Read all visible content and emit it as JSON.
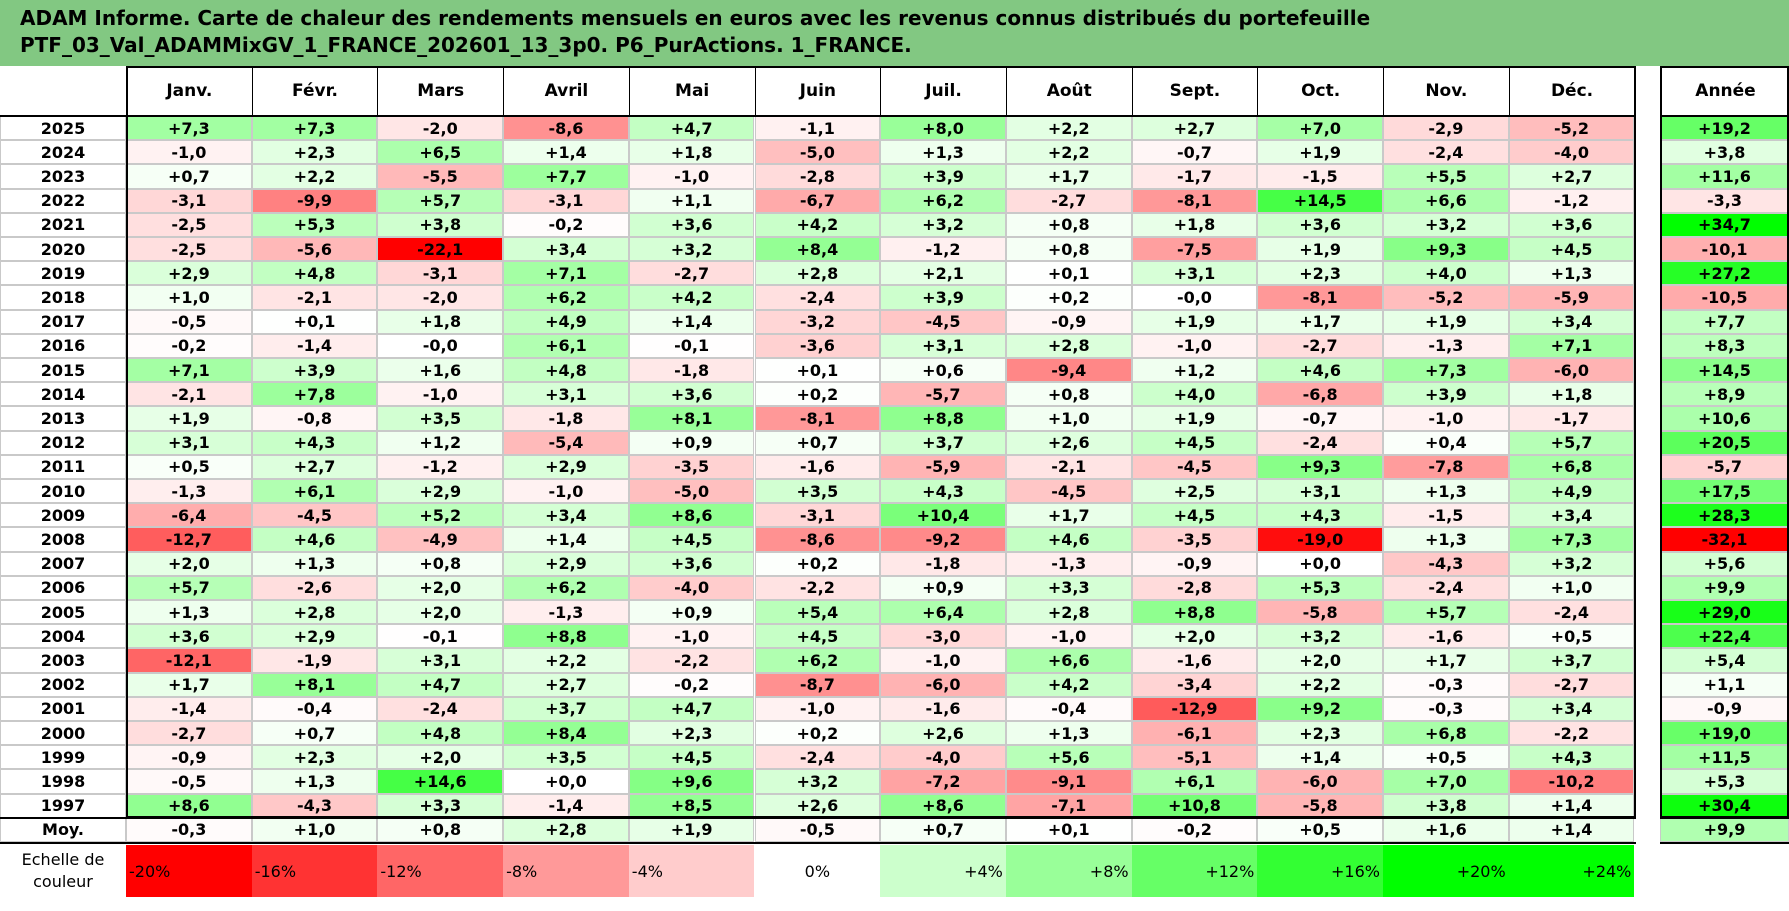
{
  "title_line1": "ADAM Informe. Carte de chaleur des rendements mensuels en euros avec les revenus connus distribués du portefeuille",
  "title_line2": "PTF_03_Val_ADAMMixGV_1_FRANCE_202601_13_3p0. P6_PurActions. 1_FRANCE.",
  "chart_data": {
    "type": "heatmap",
    "columns": [
      "Janv.",
      "Févr.",
      "Mars",
      "Avril",
      "Mai",
      "Juin",
      "Juil.",
      "Août",
      "Sept.",
      "Oct.",
      "Nov.",
      "Déc."
    ],
    "year_column_label": "Année",
    "rows": [
      {
        "year": "2025",
        "values": [
          "+7,3",
          "+7,3",
          "-2,0",
          "-8,6",
          "+4,7",
          "-1,1",
          "+8,0",
          "+2,2",
          "+2,7",
          "+7,0",
          "-2,9",
          "-5,2"
        ],
        "annual": "+19,2"
      },
      {
        "year": "2024",
        "values": [
          "-1,0",
          "+2,3",
          "+6,5",
          "+1,4",
          "+1,8",
          "-5,0",
          "+1,3",
          "+2,2",
          "-0,7",
          "+1,9",
          "-2,4",
          "-4,0"
        ],
        "annual": "+3,8"
      },
      {
        "year": "2023",
        "values": [
          "+0,7",
          "+2,2",
          "-5,5",
          "+7,7",
          "-1,0",
          "-2,8",
          "+3,9",
          "+1,7",
          "-1,7",
          "-1,5",
          "+5,5",
          "+2,7"
        ],
        "annual": "+11,6"
      },
      {
        "year": "2022",
        "values": [
          "-3,1",
          "-9,9",
          "+5,7",
          "-3,1",
          "+1,1",
          "-6,7",
          "+6,2",
          "-2,7",
          "-8,1",
          "+14,5",
          "+6,6",
          "-1,2"
        ],
        "annual": "-3,3"
      },
      {
        "year": "2021",
        "values": [
          "-2,5",
          "+5,3",
          "+3,8",
          "-0,2",
          "+3,6",
          "+4,2",
          "+3,2",
          "+0,8",
          "+1,8",
          "+3,6",
          "+3,2",
          "+3,6"
        ],
        "annual": "+34,7"
      },
      {
        "year": "2020",
        "values": [
          "-2,5",
          "-5,6",
          "-22,1",
          "+3,4",
          "+3,2",
          "+8,4",
          "-1,2",
          "+0,8",
          "-7,5",
          "+1,9",
          "+9,3",
          "+4,5"
        ],
        "annual": "-10,1"
      },
      {
        "year": "2019",
        "values": [
          "+2,9",
          "+4,8",
          "-3,1",
          "+7,1",
          "-2,7",
          "+2,8",
          "+2,1",
          "+0,1",
          "+3,1",
          "+2,3",
          "+4,0",
          "+1,3"
        ],
        "annual": "+27,2"
      },
      {
        "year": "2018",
        "values": [
          "+1,0",
          "-2,1",
          "-2,0",
          "+6,2",
          "+4,2",
          "-2,4",
          "+3,9",
          "+0,2",
          "-0,0",
          "-8,1",
          "-5,2",
          "-5,9"
        ],
        "annual": "-10,5"
      },
      {
        "year": "2017",
        "values": [
          "-0,5",
          "+0,1",
          "+1,8",
          "+4,9",
          "+1,4",
          "-3,2",
          "-4,5",
          "-0,9",
          "+1,9",
          "+1,7",
          "+1,9",
          "+3,4"
        ],
        "annual": "+7,7"
      },
      {
        "year": "2016",
        "values": [
          "-0,2",
          "-1,4",
          "-0,0",
          "+6,1",
          "-0,1",
          "-3,6",
          "+3,1",
          "+2,8",
          "-1,0",
          "-2,7",
          "-1,3",
          "+7,1"
        ],
        "annual": "+8,3"
      },
      {
        "year": "2015",
        "values": [
          "+7,1",
          "+3,9",
          "+1,6",
          "+4,8",
          "-1,8",
          "+0,1",
          "+0,6",
          "-9,4",
          "+1,2",
          "+4,6",
          "+7,3",
          "-6,0"
        ],
        "annual": "+14,5"
      },
      {
        "year": "2014",
        "values": [
          "-2,1",
          "+7,8",
          "-1,0",
          "+3,1",
          "+3,6",
          "+0,2",
          "-5,7",
          "+0,8",
          "+4,0",
          "-6,8",
          "+3,9",
          "+1,8"
        ],
        "annual": "+8,9"
      },
      {
        "year": "2013",
        "values": [
          "+1,9",
          "-0,8",
          "+3,5",
          "-1,8",
          "+8,1",
          "-8,1",
          "+8,8",
          "+1,0",
          "+1,9",
          "-0,7",
          "-1,0",
          "-1,7"
        ],
        "annual": "+10,6"
      },
      {
        "year": "2012",
        "values": [
          "+3,1",
          "+4,3",
          "+1,2",
          "-5,4",
          "+0,9",
          "+0,7",
          "+3,7",
          "+2,6",
          "+4,5",
          "-2,4",
          "+0,4",
          "+5,7"
        ],
        "annual": "+20,5"
      },
      {
        "year": "2011",
        "values": [
          "+0,5",
          "+2,7",
          "-1,2",
          "+2,9",
          "-3,5",
          "-1,6",
          "-5,9",
          "-2,1",
          "-4,5",
          "+9,3",
          "-7,8",
          "+6,8"
        ],
        "annual": "-5,7"
      },
      {
        "year": "2010",
        "values": [
          "-1,3",
          "+6,1",
          "+2,9",
          "-1,0",
          "-5,0",
          "+3,5",
          "+4,3",
          "-4,5",
          "+2,5",
          "+3,1",
          "+1,3",
          "+4,9"
        ],
        "annual": "+17,5"
      },
      {
        "year": "2009",
        "values": [
          "-6,4",
          "-4,5",
          "+5,2",
          "+3,4",
          "+8,6",
          "-3,1",
          "+10,4",
          "+1,7",
          "+4,5",
          "+4,3",
          "-1,5",
          "+3,4"
        ],
        "annual": "+28,3"
      },
      {
        "year": "2008",
        "values": [
          "-12,7",
          "+4,6",
          "-4,9",
          "+1,4",
          "+4,5",
          "-8,6",
          "-9,2",
          "+4,6",
          "-3,5",
          "-19,0",
          "+1,3",
          "+7,3"
        ],
        "annual": "-32,1"
      },
      {
        "year": "2007",
        "values": [
          "+2,0",
          "+1,3",
          "+0,8",
          "+2,9",
          "+3,6",
          "+0,2",
          "-1,8",
          "-1,3",
          "-0,9",
          "+0,0",
          "-4,3",
          "+3,2"
        ],
        "annual": "+5,6"
      },
      {
        "year": "2006",
        "values": [
          "+5,7",
          "-2,6",
          "+2,0",
          "+6,2",
          "-4,0",
          "-2,2",
          "+0,9",
          "+3,3",
          "-2,8",
          "+5,3",
          "-2,4",
          "+1,0"
        ],
        "annual": "+9,9"
      },
      {
        "year": "2005",
        "values": [
          "+1,3",
          "+2,8",
          "+2,0",
          "-1,3",
          "+0,9",
          "+5,4",
          "+6,4",
          "+2,8",
          "+8,8",
          "-5,8",
          "+5,7",
          "-2,4"
        ],
        "annual": "+29,0"
      },
      {
        "year": "2004",
        "values": [
          "+3,6",
          "+2,9",
          "-0,1",
          "+8,8",
          "-1,0",
          "+4,5",
          "-3,0",
          "-1,0",
          "+2,0",
          "+3,2",
          "-1,6",
          "+0,5"
        ],
        "annual": "+22,4"
      },
      {
        "year": "2003",
        "values": [
          "-12,1",
          "-1,9",
          "+3,1",
          "+2,2",
          "-2,2",
          "+6,2",
          "-1,0",
          "+6,6",
          "-1,6",
          "+2,0",
          "+1,7",
          "+3,7"
        ],
        "annual": "+5,4"
      },
      {
        "year": "2002",
        "values": [
          "+1,7",
          "+8,1",
          "+4,7",
          "+2,7",
          "-0,2",
          "-8,7",
          "-6,0",
          "+4,2",
          "-3,4",
          "+2,2",
          "-0,3",
          "-2,7"
        ],
        "annual": "+1,1"
      },
      {
        "year": "2001",
        "values": [
          "-1,4",
          "-0,4",
          "-2,4",
          "+3,7",
          "+4,7",
          "-1,0",
          "-1,6",
          "-0,4",
          "-12,9",
          "+9,2",
          "-0,3",
          "+3,4"
        ],
        "annual": "-0,9"
      },
      {
        "year": "2000",
        "values": [
          "-2,7",
          "+0,7",
          "+4,8",
          "+8,4",
          "+2,3",
          "+0,2",
          "+2,6",
          "+1,3",
          "-6,1",
          "+2,3",
          "+6,8",
          "-2,2"
        ],
        "annual": "+19,0"
      },
      {
        "year": "1999",
        "values": [
          "-0,9",
          "+2,3",
          "+2,0",
          "+3,5",
          "+4,5",
          "-2,4",
          "-4,0",
          "+5,6",
          "-5,1",
          "+1,4",
          "+0,5",
          "+4,3"
        ],
        "annual": "+11,5"
      },
      {
        "year": "1998",
        "values": [
          "-0,5",
          "+1,3",
          "+14,6",
          "+0,0",
          "+9,6",
          "+3,2",
          "-7,2",
          "-9,1",
          "+6,1",
          "-6,0",
          "+7,0",
          "-10,2"
        ],
        "annual": "+5,3"
      },
      {
        "year": "1997",
        "values": [
          "+8,6",
          "-4,3",
          "+3,3",
          "-1,4",
          "+8,5",
          "+2,6",
          "+8,6",
          "-7,1",
          "+10,8",
          "-5,8",
          "+3,8",
          "+1,4"
        ],
        "annual": "+30,4"
      }
    ],
    "average_row": {
      "label": "Moy.",
      "values": [
        "-0,3",
        "+1,0",
        "+0,8",
        "+2,8",
        "+1,9",
        "-0,5",
        "+0,7",
        "+0,1",
        "-0,2",
        "+0,5",
        "+1,6",
        "+1,4"
      ],
      "annual": "+9,9"
    },
    "color_scale": {
      "label": "Echelle de couleur",
      "steps": [
        "-20%",
        "-16%",
        "-12%",
        "-8%",
        "-4%",
        "0%",
        "+4%",
        "+8%",
        "+12%",
        "+16%",
        "+20%",
        "+24%"
      ]
    },
    "colors": {
      "negative_max": "#ff0000",
      "neutral": "#ffffff",
      "positive_max": "#00ff00",
      "title_bg": "#82c882"
    }
  }
}
